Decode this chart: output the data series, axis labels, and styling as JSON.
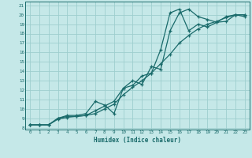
{
  "xlabel": "Humidex (Indice chaleur)",
  "bg_color": "#c5e8e8",
  "grid_color": "#9ecece",
  "line_color": "#1a6b6b",
  "xlim": [
    -0.5,
    23.5
  ],
  "ylim": [
    7.8,
    21.4
  ],
  "xticks": [
    0,
    1,
    2,
    3,
    4,
    5,
    6,
    7,
    8,
    9,
    10,
    11,
    12,
    13,
    14,
    15,
    16,
    17,
    18,
    19,
    20,
    21,
    22,
    23
  ],
  "yticks": [
    8,
    9,
    10,
    11,
    12,
    13,
    14,
    15,
    16,
    17,
    18,
    19,
    20,
    21
  ],
  "line1_x": [
    0,
    1,
    2,
    3,
    4,
    5,
    6,
    7,
    8,
    9,
    10,
    11,
    12,
    13,
    14,
    15,
    16,
    17,
    18,
    19,
    20,
    21,
    22,
    23
  ],
  "line1_y": [
    8.3,
    8.3,
    8.3,
    9.0,
    9.3,
    9.3,
    9.5,
    10.8,
    10.4,
    9.5,
    12.2,
    13.0,
    12.6,
    14.5,
    14.2,
    18.3,
    20.2,
    20.6,
    19.8,
    19.5,
    19.2,
    19.3,
    20.0,
    20.0
  ],
  "line2_x": [
    0,
    1,
    2,
    3,
    4,
    5,
    6,
    7,
    8,
    9,
    10,
    11,
    12,
    13,
    14,
    15,
    16,
    17,
    18,
    19,
    20,
    21,
    22,
    23
  ],
  "line2_y": [
    8.3,
    8.3,
    8.3,
    9.0,
    9.2,
    9.2,
    9.3,
    9.8,
    10.3,
    10.8,
    12.2,
    12.5,
    13.5,
    13.8,
    16.3,
    20.2,
    20.6,
    18.3,
    19.0,
    18.7,
    19.2,
    19.8,
    20.0,
    19.8
  ],
  "line3_x": [
    0,
    1,
    2,
    3,
    4,
    5,
    6,
    7,
    8,
    9,
    10,
    11,
    12,
    13,
    14,
    15,
    16,
    17,
    18,
    19,
    20,
    21,
    22,
    23
  ],
  "line3_y": [
    8.3,
    8.3,
    8.3,
    8.9,
    9.1,
    9.2,
    9.3,
    9.5,
    10.0,
    10.5,
    11.5,
    12.3,
    13.0,
    13.8,
    14.8,
    15.8,
    17.0,
    17.8,
    18.5,
    19.0,
    19.3,
    19.7,
    20.0,
    20.0
  ]
}
